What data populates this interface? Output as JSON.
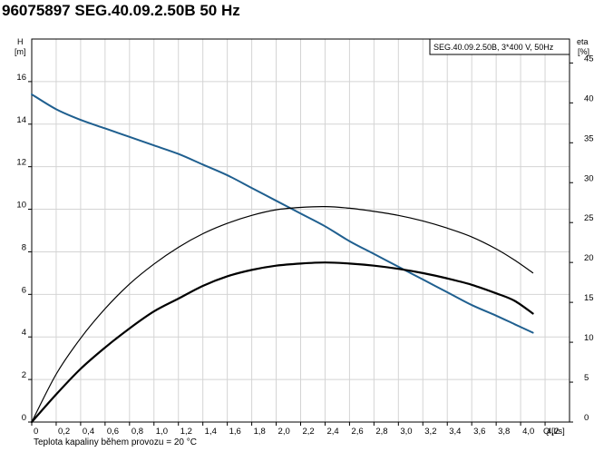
{
  "page": {
    "title": "96075897 SEG.40.09.2.50B  50 Hz",
    "footnote": "Teplota kapaliny během provozu = 20 °C"
  },
  "chart_data": {
    "type": "line",
    "legend_box": "SEG.40.09.2.50B, 3*400 V, 50Hz",
    "legend_position": "top-right",
    "grid": true,
    "x_axis": {
      "label": "Q",
      "unit": "[l/s]",
      "range": [
        0,
        4.4
      ],
      "ticks": [
        0,
        0.2,
        0.4,
        0.6,
        0.8,
        1.0,
        1.2,
        1.4,
        1.6,
        1.8,
        2.0,
        2.2,
        2.4,
        2.6,
        2.8,
        3.0,
        3.2,
        3.4,
        3.6,
        3.8,
        4.0,
        4.2
      ],
      "tick_labels": [
        "0",
        "0,2",
        "0,4",
        "0,6",
        "0,8",
        "1,0",
        "1,2",
        "1,4",
        "1,6",
        "1,8",
        "2,0",
        "2,2",
        "2,4",
        "2,6",
        "2,8",
        "3,0",
        "3,2",
        "3,4",
        "3,6",
        "3,8",
        "4,0",
        "4,2"
      ]
    },
    "y_left": {
      "label": "H",
      "unit": "[m]",
      "range": [
        0,
        18
      ],
      "ticks": [
        0,
        2,
        4,
        6,
        8,
        10,
        12,
        14,
        16
      ]
    },
    "y_right": {
      "label": "eta",
      "unit": "[%]",
      "range": [
        0,
        48
      ],
      "ticks": [
        0,
        5,
        10,
        15,
        20,
        25,
        30,
        35,
        40,
        45
      ]
    },
    "series": [
      {
        "axis": "left",
        "color": "#1f5f8f",
        "stroke": 2,
        "x": [
          0,
          0.2,
          0.4,
          0.6,
          0.8,
          1.0,
          1.2,
          1.4,
          1.6,
          1.8,
          2.0,
          2.2,
          2.4,
          2.6,
          2.8,
          3.0,
          3.2,
          3.4,
          3.6,
          3.8,
          3.95,
          4.1
        ],
        "y": [
          15.4,
          14.7,
          14.2,
          13.8,
          13.4,
          13.0,
          12.6,
          12.1,
          11.6,
          11.0,
          10.4,
          9.8,
          9.2,
          8.5,
          7.9,
          7.3,
          6.7,
          6.1,
          5.5,
          5.0,
          4.6,
          4.2
        ]
      },
      {
        "axis": "left",
        "color": "#000000",
        "stroke": 2.2,
        "x": [
          0,
          0.2,
          0.4,
          0.6,
          0.8,
          1.0,
          1.2,
          1.4,
          1.6,
          1.8,
          2.0,
          2.2,
          2.4,
          2.6,
          2.8,
          3.0,
          3.2,
          3.4,
          3.6,
          3.8,
          3.95,
          4.1
        ],
        "y": [
          0,
          1.3,
          2.5,
          3.5,
          4.4,
          5.2,
          5.8,
          6.4,
          6.85,
          7.15,
          7.35,
          7.45,
          7.5,
          7.45,
          7.35,
          7.2,
          7.0,
          6.75,
          6.45,
          6.05,
          5.7,
          5.1
        ]
      },
      {
        "axis": "right",
        "color": "#000000",
        "stroke": 1.2,
        "x": [
          0,
          0.2,
          0.4,
          0.6,
          0.8,
          1.0,
          1.2,
          1.4,
          1.6,
          1.8,
          2.0,
          2.2,
          2.4,
          2.6,
          2.8,
          3.0,
          3.2,
          3.4,
          3.6,
          3.8,
          3.95,
          4.1
        ],
        "y": [
          0,
          6.0,
          10.5,
          14.2,
          17.3,
          19.8,
          21.9,
          23.6,
          24.9,
          25.9,
          26.6,
          26.9,
          27.0,
          26.8,
          26.4,
          25.9,
          25.2,
          24.3,
          23.2,
          21.7,
          20.3,
          18.7
        ]
      }
    ]
  }
}
